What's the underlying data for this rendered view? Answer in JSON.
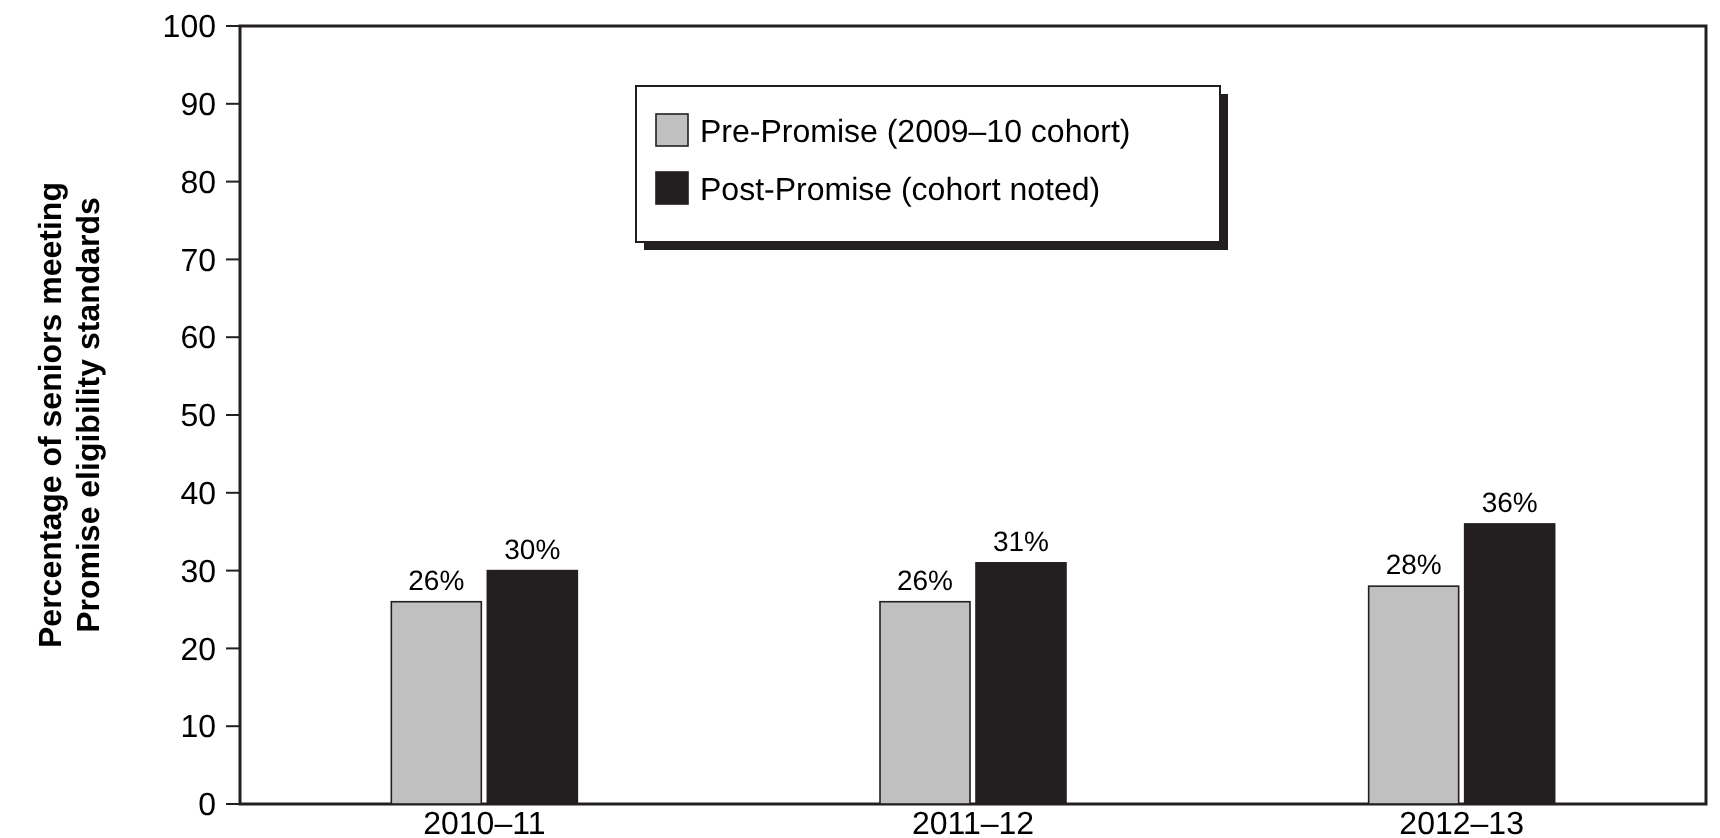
{
  "chart_data": {
    "type": "bar",
    "ylabel": "Percentage of seniors meeting\nPromise eligibility standards",
    "categories": [
      "2010–11",
      "2011–12",
      "2012–13"
    ],
    "series": [
      {
        "name": "Pre-Promise (2009–10 cohort)",
        "color": "#c0c0c0",
        "values": [
          26,
          26,
          28
        ],
        "value_labels": [
          "26%",
          "26%",
          "28%"
        ]
      },
      {
        "name": "Post-Promise (cohort noted)",
        "color": "#231f20",
        "values": [
          30,
          31,
          36
        ],
        "value_labels": [
          "30%",
          "31%",
          "36%"
        ]
      }
    ],
    "ylim": [
      0,
      100
    ],
    "yticks": [
      0,
      10,
      20,
      30,
      40,
      50,
      60,
      70,
      80,
      90,
      100
    ],
    "grid": false,
    "legend": "top"
  }
}
